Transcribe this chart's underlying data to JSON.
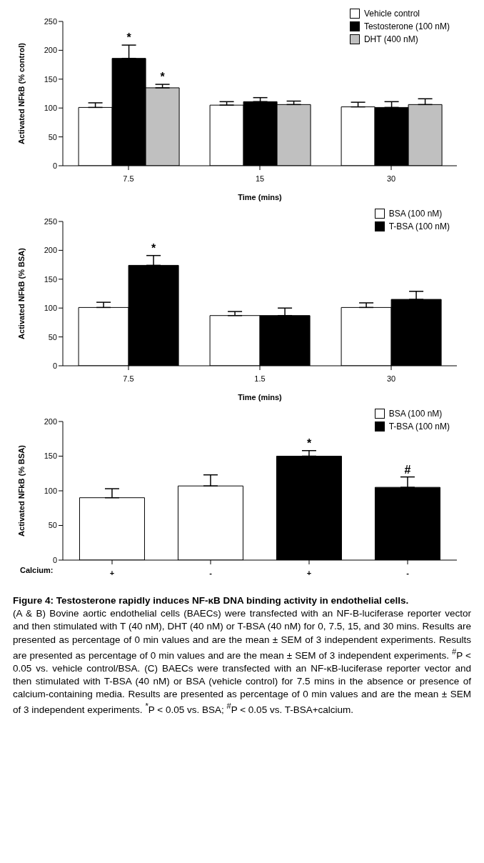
{
  "chart_data": [
    {
      "type": "bar",
      "ylabel": "Activated NFkB (% control)",
      "xlabel": "Time (mins)",
      "categories": [
        "7.5",
        "15",
        "30"
      ],
      "ylim": [
        0,
        250
      ],
      "yticks": [
        0,
        50,
        100,
        150,
        200,
        250
      ],
      "grid": false,
      "legend": "top right",
      "series": [
        {
          "name": "Vehicle control",
          "color": "#ffffff",
          "values": [
            101,
            105,
            102
          ],
          "errors": [
            [
              101,
              109
            ],
            [
              105,
              111
            ],
            [
              102,
              110
            ]
          ]
        },
        {
          "name": "Testosterone (100 nM)",
          "color": "#000000",
          "values": [
            186,
            111,
            101
          ],
          "errors": [
            [
              186,
              209
            ],
            [
              111,
              118
            ],
            [
              101,
              111
            ]
          ],
          "value_labels": [
            "*",
            null,
            null
          ]
        },
        {
          "name": "DHT (400 nM)",
          "color": "#c0c0c0",
          "values": [
            135,
            106,
            106
          ],
          "errors": [
            [
              135,
              141
            ],
            [
              106,
              112
            ],
            [
              106,
              116
            ]
          ],
          "value_labels": [
            "*",
            null,
            null
          ]
        }
      ]
    },
    {
      "type": "bar",
      "ylabel": "Activated NFkB (% BSA)",
      "xlabel": "Time (mins)",
      "categories": [
        "7.5",
        "1.5",
        "30"
      ],
      "ylim": [
        0,
        250
      ],
      "yticks": [
        0,
        50,
        100,
        150,
        200,
        250
      ],
      "grid": false,
      "legend": "top right",
      "series": [
        {
          "name": "BSA (100 nM)",
          "color": "#ffffff",
          "values": [
            101,
            87,
            101
          ],
          "errors": [
            [
              101,
              110
            ],
            [
              87,
              94
            ],
            [
              101,
              109
            ]
          ]
        },
        {
          "name": "T-BSA (100 nM)",
          "color": "#000000",
          "values": [
            174,
            87,
            115
          ],
          "errors": [
            [
              174,
              191
            ],
            [
              87,
              100
            ],
            [
              115,
              129
            ]
          ],
          "value_labels": [
            "*",
            null,
            null
          ]
        }
      ]
    },
    {
      "type": "bar",
      "ylabel": "Activated NFkB (% BSA)",
      "xlabel": "Calcium:",
      "categories": [
        "+",
        "-",
        "+",
        "-"
      ],
      "ylim": [
        0,
        200
      ],
      "yticks": [
        0,
        50,
        100,
        150,
        200
      ],
      "grid": false,
      "legend": "top right",
      "stacked": true,
      "series": [
        {
          "name": "BSA (100 nM)",
          "color": "#ffffff",
          "values": [
            90,
            107,
            null,
            null
          ],
          "errors": [
            [
              90,
              103
            ],
            [
              107,
              123
            ],
            null,
            null
          ]
        },
        {
          "name": "T-BSA (100 nM)",
          "color": "#000000",
          "values": [
            null,
            null,
            150,
            105
          ],
          "errors": [
            null,
            null,
            [
              150,
              158
            ],
            [
              105,
              120
            ]
          ],
          "value_labels": [
            null,
            null,
            "*",
            "#"
          ]
        }
      ],
      "annotations": [
        "Figure 4: Testosterone rapidly induces NF-κB DNA binding activity in endothelial cells.",
        "(A & B) Bovine aortic endothelial cells (BAECs) were transfected with an NF-B-luciferase reporter vector and then stimulated with T (40 nM), DHT (40 nM) or T-BSA (40 nM) for 0, 7.5, 15, and 30 mins. Results are presented as percentage of 0 min values and are the mean ± SEM of 3 independent experiments. Results are presented as percentage of 0 min values and are the mean ± SEM of 3 independent experiments.  $^{#}$P < 0.05 vs. vehicle control/BSA. (C) BAECs were transfected with an NF-κB-luciferase reporter vector and then stimulated with T-BSA (40 nM) or BSA (vehicle control) for 7.5 mins in the absence or presence of calcium-containing media. Results are presented as percentage of 0 min values and are the mean ± SEM of 3 independent experiments. $^{*}$P < 0.05 vs. BSA; $^{#}$P < 0.05 vs. T-BSA+calcium."
      ]
    }
  ]
}
